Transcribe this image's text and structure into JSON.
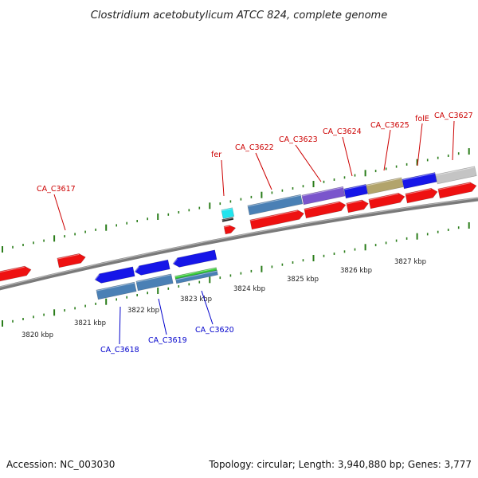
{
  "title": "Clostridium acetobutylicum ATCC 824, complete genome",
  "footer": {
    "accession": "Accession: NC_003030",
    "summary": "Topology: circular; Length: 3,940,880 bp; Genes: 3,777"
  },
  "colors": {
    "forward_label": "#cc0000",
    "reverse_label": "#0000cc",
    "backbone": "#7a7a7a",
    "tick": "#2a7d1a",
    "red": "#ee1111",
    "blue": "#1616e8",
    "steel": "#4a80b5",
    "purple": "#7a55cc",
    "olive": "#b2a46b",
    "grey": "#c4c4c4",
    "cyan": "#22e4ee",
    "green": "#36c936"
  },
  "scale_labels": [
    "3820 kbp",
    "3821 kbp",
    "3822 kbp",
    "3823 kbp",
    "3824 kbp",
    "3825 kbp",
    "3826 kbp",
    "3827 kbp"
  ],
  "gene_labels": [
    {
      "text": "CA_C3617",
      "strand": "forward"
    },
    {
      "text": "fer",
      "strand": "forward"
    },
    {
      "text": "CA_C3622",
      "strand": "forward"
    },
    {
      "text": "CA_C3623",
      "strand": "forward"
    },
    {
      "text": "CA_C3624",
      "strand": "forward"
    },
    {
      "text": "CA_C3625",
      "strand": "forward"
    },
    {
      "text": "folE",
      "strand": "forward"
    },
    {
      "text": "CA_C3627",
      "strand": "forward"
    },
    {
      "text": "CA_C3618",
      "strand": "reverse"
    },
    {
      "text": "CA_C3619",
      "strand": "reverse"
    },
    {
      "text": "CA_C3620",
      "strand": "reverse"
    }
  ]
}
